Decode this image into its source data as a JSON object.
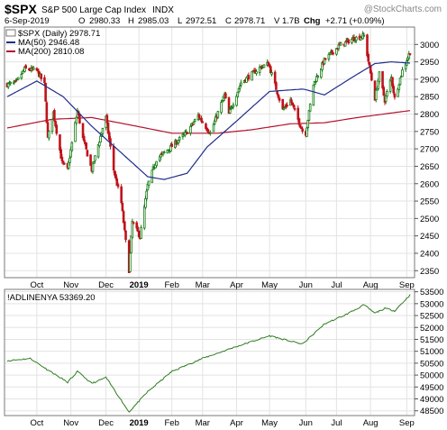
{
  "header": {
    "symbol": "$SPX",
    "name": "S&P 500 Large Cap Index",
    "exchange": "INDX",
    "watermark": "@StockCharts.com",
    "date": "6-Sep-2019",
    "open_label": "O",
    "open": "2980.33",
    "high_label": "H",
    "high": "2985.03",
    "low_label": "L",
    "low": "2972.51",
    "close_label": "C",
    "close": "2978.71",
    "volume_label": "V",
    "volume": "1.7B",
    "change_label": "Chg",
    "change": "+2.71 (+0.09%)"
  },
  "legend_top": {
    "price": "$SPX (Daily) 2978.71",
    "ma50": "MA(50) 2946.48",
    "ma200": "MA(200) 2810.08"
  },
  "legend_bottom": {
    "line": "!ADLINENYA 53369.20"
  },
  "x_axis": {
    "labels": [
      "Oct",
      "Nov",
      "Dec",
      "2019",
      "Feb",
      "Mar",
      "Apr",
      "May",
      "Jun",
      "Jul",
      "Aug",
      "Sep"
    ]
  },
  "colors": {
    "up": "#0f7a0f",
    "down": "#c0131a",
    "ma50": "#1f2d8c",
    "ma200": "#b3122e",
    "adline": "#2e7d1f",
    "grid": "#e3e3e3",
    "frame": "#7a7a7a"
  },
  "chart_data": [
    {
      "type": "candlestick",
      "title": "$SPX (Daily) 2978.71",
      "ylim": [
        2330,
        3050
      ],
      "yticks": [
        2350,
        2400,
        2450,
        2500,
        2550,
        2600,
        2650,
        2700,
        2750,
        2800,
        2850,
        2900,
        2950,
        3000
      ],
      "price_anchors": [
        {
          "x": "2018-09-04",
          "y": 2885
        },
        {
          "x": "2018-09-12",
          "y": 2890
        },
        {
          "x": "2018-09-20",
          "y": 2930
        },
        {
          "x": "2018-10-01",
          "y": 2925
        },
        {
          "x": "2018-10-08",
          "y": 2885
        },
        {
          "x": "2018-10-11",
          "y": 2730
        },
        {
          "x": "2018-10-16",
          "y": 2805
        },
        {
          "x": "2018-10-24",
          "y": 2660
        },
        {
          "x": "2018-10-29",
          "y": 2640
        },
        {
          "x": "2018-11-07",
          "y": 2810
        },
        {
          "x": "2018-11-12",
          "y": 2730
        },
        {
          "x": "2018-11-20",
          "y": 2640
        },
        {
          "x": "2018-11-30",
          "y": 2760
        },
        {
          "x": "2018-12-03",
          "y": 2790
        },
        {
          "x": "2018-12-10",
          "y": 2640
        },
        {
          "x": "2018-12-17",
          "y": 2545
        },
        {
          "x": "2018-12-24",
          "y": 2351
        },
        {
          "x": "2018-12-27",
          "y": 2490
        },
        {
          "x": "2019-01-03",
          "y": 2448
        },
        {
          "x": "2019-01-10",
          "y": 2595
        },
        {
          "x": "2019-01-18",
          "y": 2670
        },
        {
          "x": "2019-01-31",
          "y": 2705
        },
        {
          "x": "2019-02-14",
          "y": 2745
        },
        {
          "x": "2019-02-25",
          "y": 2795
        },
        {
          "x": "2019-03-08",
          "y": 2745
        },
        {
          "x": "2019-03-21",
          "y": 2855
        },
        {
          "x": "2019-03-25",
          "y": 2800
        },
        {
          "x": "2019-04-05",
          "y": 2890
        },
        {
          "x": "2019-04-23",
          "y": 2935
        },
        {
          "x": "2019-04-30",
          "y": 2945
        },
        {
          "x": "2019-05-13",
          "y": 2812
        },
        {
          "x": "2019-05-20",
          "y": 2840
        },
        {
          "x": "2019-05-31",
          "y": 2752
        },
        {
          "x": "2019-06-03",
          "y": 2745
        },
        {
          "x": "2019-06-10",
          "y": 2885
        },
        {
          "x": "2019-06-20",
          "y": 2955
        },
        {
          "x": "2019-07-03",
          "y": 2995
        },
        {
          "x": "2019-07-15",
          "y": 3015
        },
        {
          "x": "2019-07-26",
          "y": 3025
        },
        {
          "x": "2019-08-05",
          "y": 2845
        },
        {
          "x": "2019-08-09",
          "y": 2915
        },
        {
          "x": "2019-08-14",
          "y": 2840
        },
        {
          "x": "2019-08-20",
          "y": 2905
        },
        {
          "x": "2019-08-23",
          "y": 2845
        },
        {
          "x": "2019-08-30",
          "y": 2925
        },
        {
          "x": "2019-09-06",
          "y": 2978.71
        }
      ],
      "ma50_anchors": [
        {
          "x": "2018-09-04",
          "y": 2850
        },
        {
          "x": "2018-10-01",
          "y": 2895
        },
        {
          "x": "2018-10-25",
          "y": 2850
        },
        {
          "x": "2018-11-20",
          "y": 2765
        },
        {
          "x": "2018-12-20",
          "y": 2680
        },
        {
          "x": "2019-01-10",
          "y": 2620
        },
        {
          "x": "2019-01-25",
          "y": 2612
        },
        {
          "x": "2019-02-15",
          "y": 2630
        },
        {
          "x": "2019-03-05",
          "y": 2705
        },
        {
          "x": "2019-04-01",
          "y": 2780
        },
        {
          "x": "2019-05-01",
          "y": 2865
        },
        {
          "x": "2019-06-01",
          "y": 2872
        },
        {
          "x": "2019-06-20",
          "y": 2855
        },
        {
          "x": "2019-07-15",
          "y": 2905
        },
        {
          "x": "2019-08-05",
          "y": 2945
        },
        {
          "x": "2019-08-20",
          "y": 2950
        },
        {
          "x": "2019-09-06",
          "y": 2946.48
        }
      ],
      "ma200_anchors": [
        {
          "x": "2018-09-04",
          "y": 2760
        },
        {
          "x": "2018-10-15",
          "y": 2785
        },
        {
          "x": "2018-11-20",
          "y": 2790
        },
        {
          "x": "2018-12-31",
          "y": 2765
        },
        {
          "x": "2019-02-01",
          "y": 2745
        },
        {
          "x": "2019-03-15",
          "y": 2745
        },
        {
          "x": "2019-04-15",
          "y": 2755
        },
        {
          "x": "2019-05-20",
          "y": 2772
        },
        {
          "x": "2019-06-20",
          "y": 2775
        },
        {
          "x": "2019-07-20",
          "y": 2790
        },
        {
          "x": "2019-09-06",
          "y": 2810.08
        }
      ]
    },
    {
      "type": "line",
      "title": "!ADLINENYA 53369.20",
      "ylim": [
        48300,
        53600
      ],
      "yticks": [
        48500,
        49000,
        49500,
        50000,
        50500,
        51000,
        51500,
        52000,
        52500,
        53000,
        53500
      ],
      "line_anchors": [
        {
          "x": "2018-09-04",
          "y": 50600
        },
        {
          "x": "2018-09-25",
          "y": 50700
        },
        {
          "x": "2018-10-10",
          "y": 50250
        },
        {
          "x": "2018-10-29",
          "y": 49700
        },
        {
          "x": "2018-11-07",
          "y": 50150
        },
        {
          "x": "2018-11-20",
          "y": 49650
        },
        {
          "x": "2018-12-03",
          "y": 49900
        },
        {
          "x": "2018-12-24",
          "y": 48450
        },
        {
          "x": "2019-01-10",
          "y": 49300
        },
        {
          "x": "2019-02-01",
          "y": 50150
        },
        {
          "x": "2019-03-01",
          "y": 50700
        },
        {
          "x": "2019-04-01",
          "y": 51200
        },
        {
          "x": "2019-05-01",
          "y": 51650
        },
        {
          "x": "2019-05-31",
          "y": 51300
        },
        {
          "x": "2019-06-20",
          "y": 52150
        },
        {
          "x": "2019-07-10",
          "y": 52550
        },
        {
          "x": "2019-07-26",
          "y": 52950
        },
        {
          "x": "2019-08-05",
          "y": 52600
        },
        {
          "x": "2019-08-14",
          "y": 52800
        },
        {
          "x": "2019-08-23",
          "y": 52700
        },
        {
          "x": "2019-09-06",
          "y": 53369.2
        }
      ]
    }
  ]
}
